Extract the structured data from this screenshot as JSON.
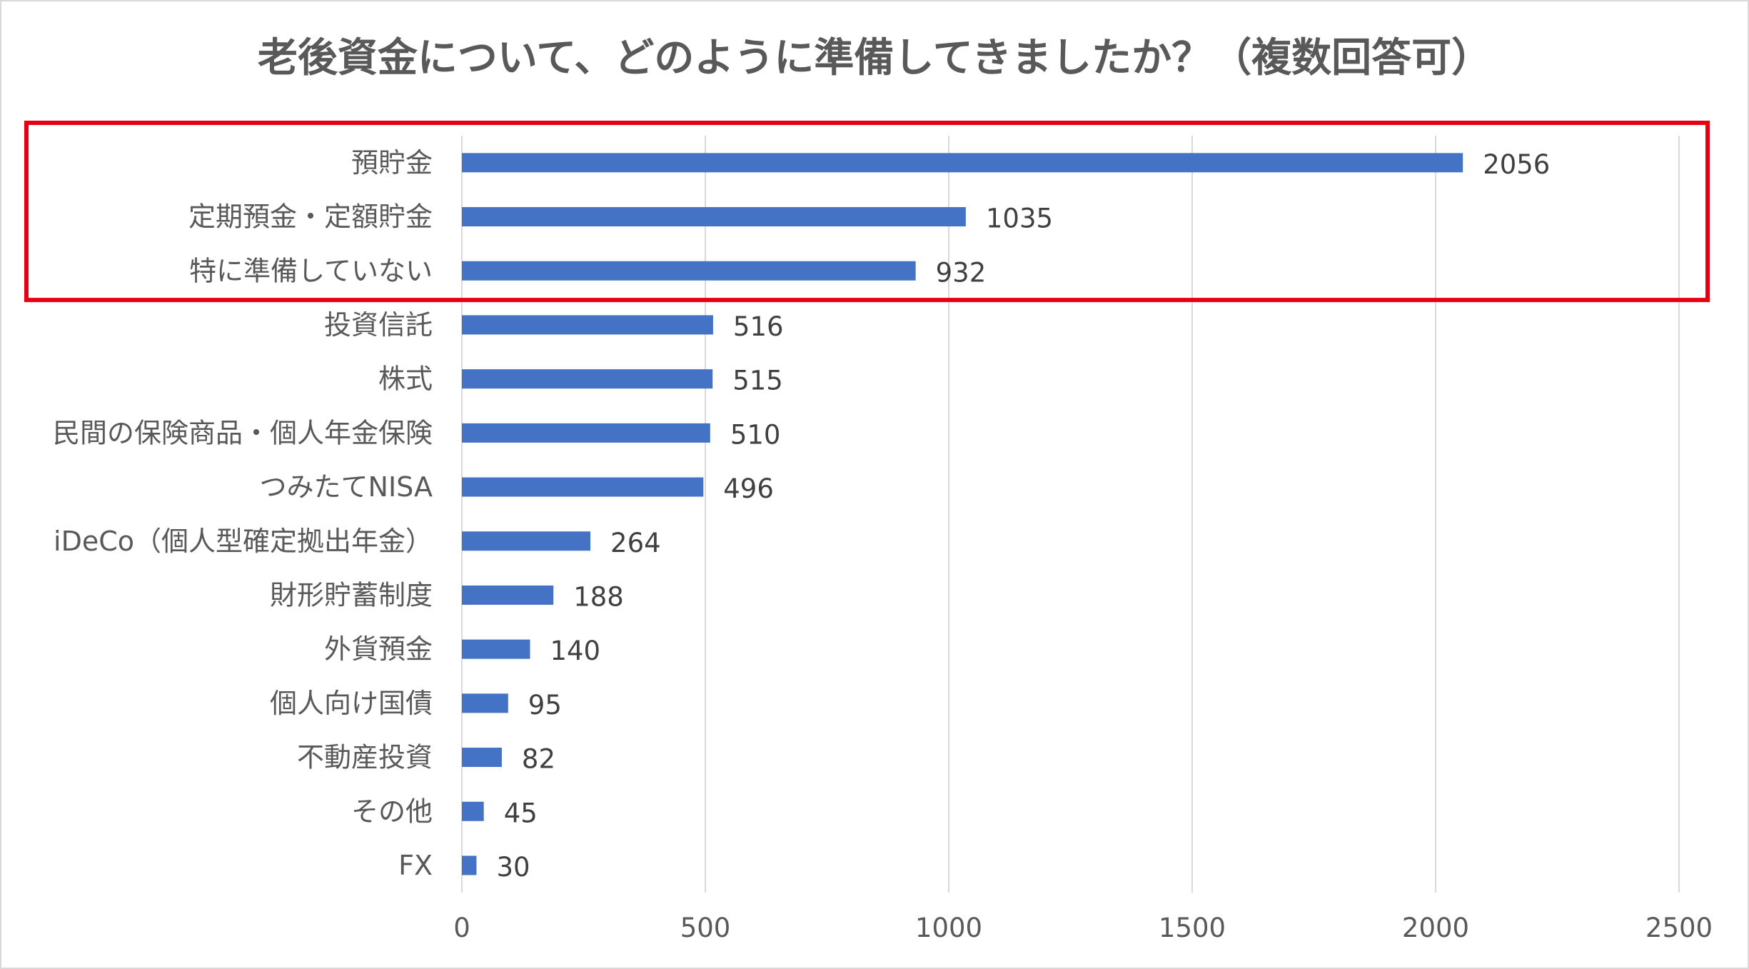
{
  "chart_data": {
    "type": "bar",
    "orientation": "horizontal",
    "title": "老後資金について、どのように準備してきましたか？（複数回答可）",
    "categories": [
      "預貯金",
      "定期預金・定額貯金",
      "特に準備していない",
      "投資信託",
      "株式",
      "民間の保険商品・個人年金保険",
      "つみたてNISA",
      "iDeCo（個人型確定拠出年金）",
      "財形貯蓄制度",
      "外貨預金",
      "個人向け国債",
      "不動産投資",
      "その他",
      "FX"
    ],
    "values": [
      2056,
      1035,
      932,
      516,
      515,
      510,
      496,
      264,
      188,
      140,
      95,
      82,
      45,
      30
    ],
    "xlim": [
      0,
      2500
    ],
    "xticks": [
      0,
      500,
      1000,
      1500,
      2000,
      2500
    ],
    "grid": true,
    "xlabel": "",
    "ylabel": "",
    "bar_color": "#4472C4",
    "highlight": {
      "color": "#E60012",
      "categories": [
        "預貯金",
        "定期預金・定額貯金",
        "特に準備していない"
      ]
    }
  }
}
